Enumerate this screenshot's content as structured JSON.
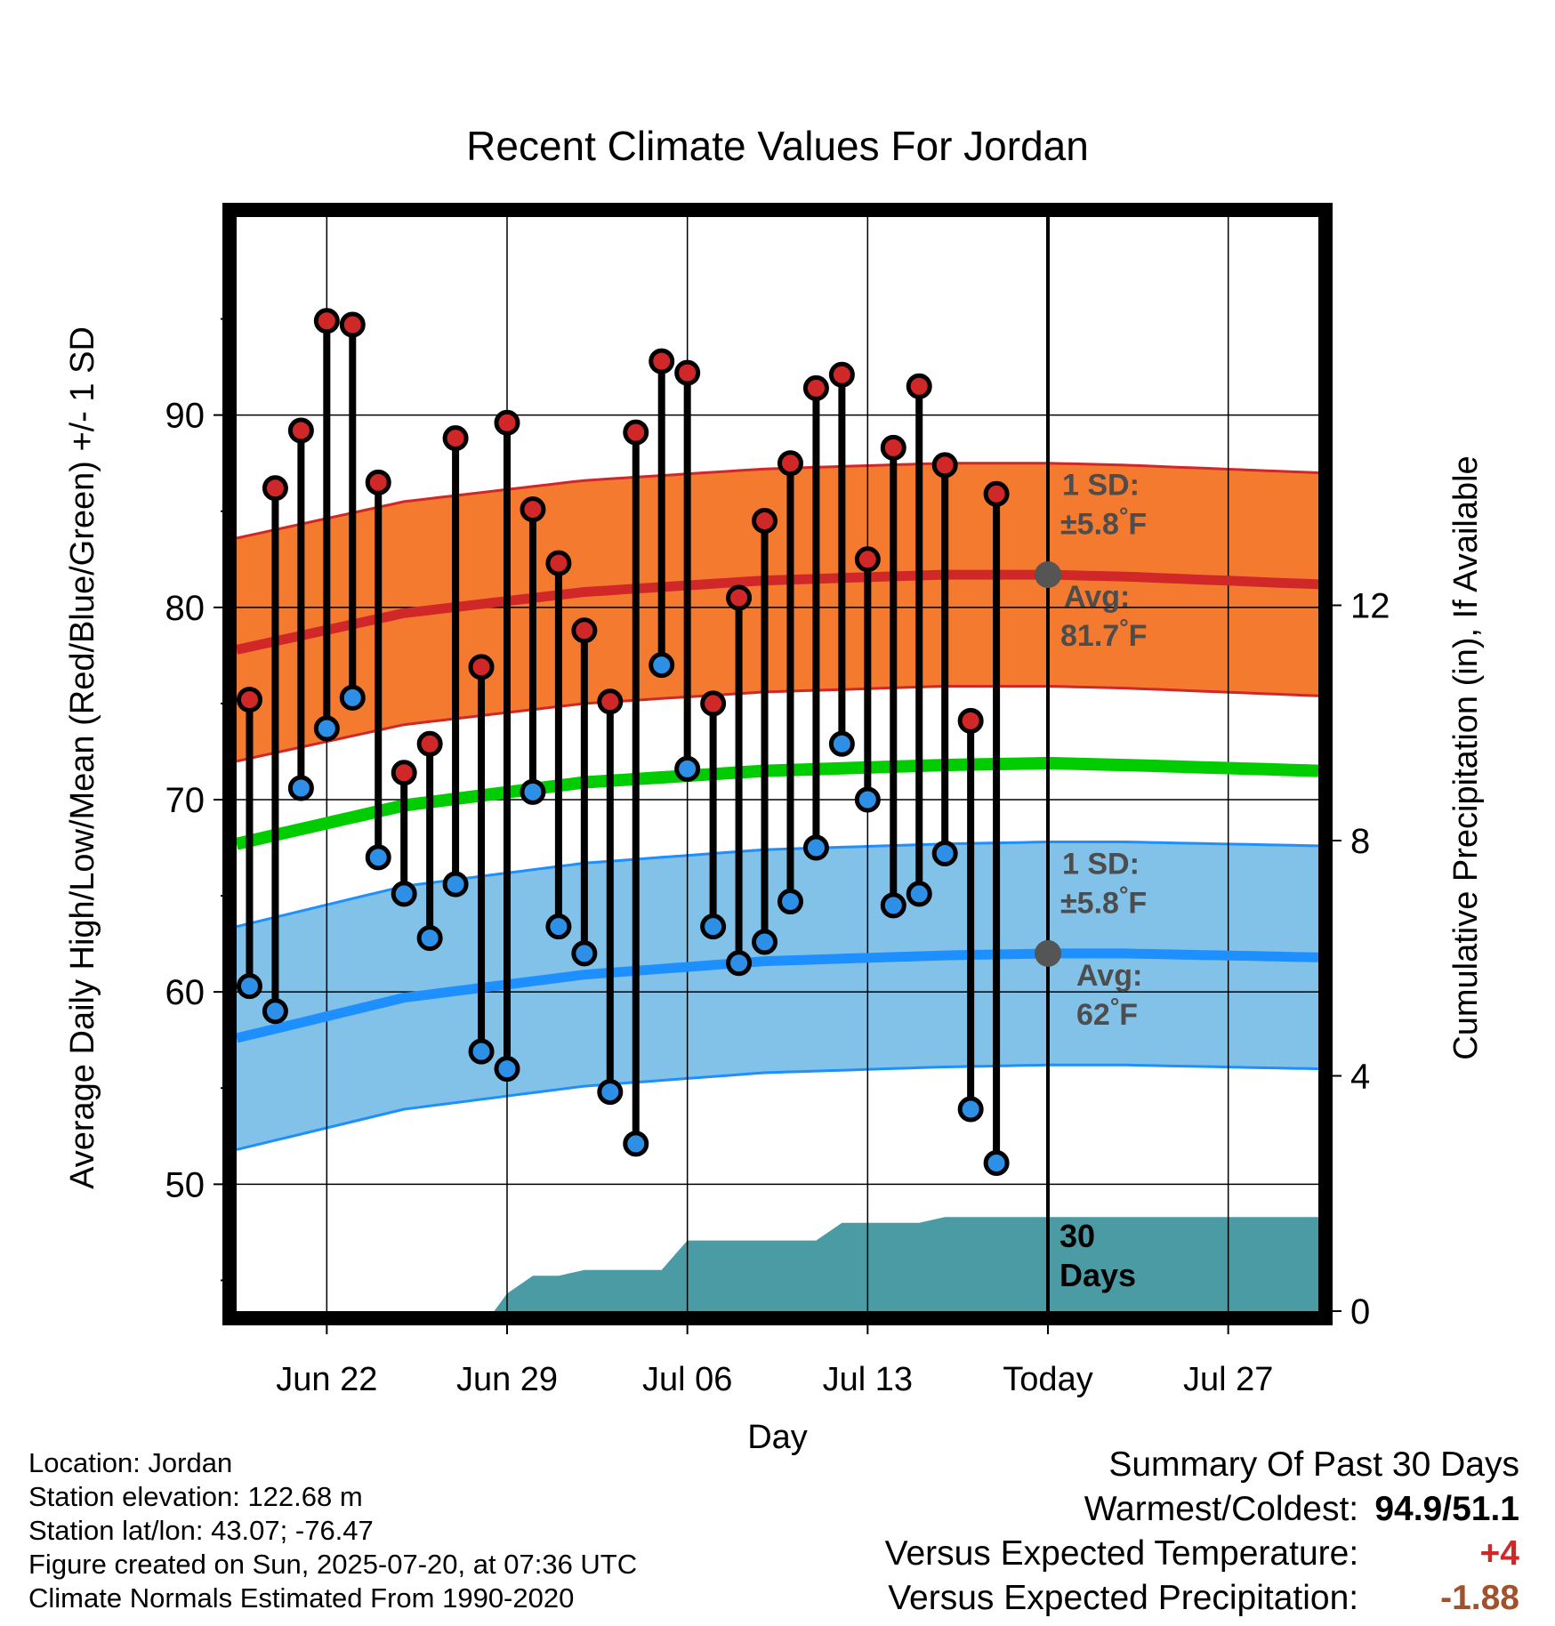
{
  "chart_data": {
    "type": "line",
    "title": "Recent Climate Values For Jordan",
    "xlabel": "Day",
    "ylabel": "Average Daily High/Low/Mean (Red/Blue/Green) +/- 1 SD",
    "ylabel_right": "Cumulative Precipitation (in), If Available",
    "x_ticks": [
      "Jun 22",
      "Jun 29",
      "Jul 06",
      "Jul 13",
      "Today",
      "Jul 27"
    ],
    "x_tick_days": [
      3,
      10,
      17,
      24,
      31,
      38
    ],
    "xlim_days": [
      -0.5,
      41.5
    ],
    "y_ticks": [
      50,
      60,
      70,
      80,
      90
    ],
    "ylim": [
      43.4,
      100.3
    ],
    "y2_ticks": [
      0,
      4,
      8,
      12
    ],
    "y2lim": [
      0,
      18.6
    ],
    "grid": true,
    "today_day": 31,
    "today_label": [
      "30",
      "Days"
    ],
    "observed_days": [
      0,
      1,
      2,
      3,
      4,
      5,
      6,
      7,
      8,
      9,
      10,
      11,
      12,
      13,
      14,
      15,
      16,
      17,
      18,
      19,
      20,
      21,
      22,
      23,
      24,
      25,
      26,
      27,
      28,
      29
    ],
    "highs": [
      75.2,
      86.2,
      89.2,
      94.9,
      94.7,
      86.5,
      71.4,
      72.9,
      88.8,
      76.9,
      89.6,
      85.1,
      82.3,
      78.8,
      75.1,
      89.1,
      92.8,
      92.2,
      75.0,
      80.5,
      84.5,
      87.5,
      91.4,
      92.1,
      82.5,
      88.3,
      91.5,
      87.4,
      74.1,
      85.9
    ],
    "lows": [
      60.3,
      59.0,
      70.6,
      73.7,
      75.3,
      67.0,
      65.1,
      62.8,
      65.6,
      56.9,
      56.0,
      70.4,
      63.4,
      62.0,
      54.8,
      52.1,
      77.0,
      71.6,
      63.4,
      61.5,
      62.6,
      64.7,
      67.5,
      72.9,
      70.0,
      64.5,
      65.1,
      67.2,
      53.9,
      51.1
    ],
    "normals_days": [
      -0.5,
      6,
      13,
      20,
      27,
      31,
      34,
      41.5
    ],
    "normal_high": [
      77.8,
      79.7,
      80.8,
      81.4,
      81.7,
      81.7,
      81.6,
      81.2
    ],
    "normal_low": [
      57.6,
      59.7,
      60.9,
      61.6,
      61.9,
      62.0,
      62.0,
      61.8
    ],
    "normal_mean": [
      67.7,
      69.7,
      70.9,
      71.5,
      71.8,
      71.9,
      71.8,
      71.5
    ],
    "sd": 5.8,
    "precip_days": [
      9.5,
      10,
      11,
      12,
      13,
      16,
      17,
      18,
      19,
      22,
      23,
      26,
      27,
      41.5
    ],
    "precip_cum": [
      0,
      0.3,
      0.6,
      0.6,
      0.7,
      0.7,
      1.2,
      1.2,
      1.2,
      1.2,
      1.5,
      1.5,
      1.6,
      1.6
    ],
    "colors": {
      "high_band": "#F47A30",
      "high_line": "#D02828",
      "low_band": "#82C1E8",
      "low_line": "#1E8FFF",
      "mean_line": "#00CC00",
      "precip": "#4A9BA3",
      "high_dot": "#D02828",
      "low_dot": "#2D8FE6",
      "annot_text": "#4D4D4D",
      "today_marker": "#555555"
    },
    "annotations": {
      "high_sd_label": [
        "1 SD:",
        "±5.8°F"
      ],
      "high_avg_label": [
        "Avg:",
        "81.7°F"
      ],
      "low_sd_label": [
        "1 SD:",
        "±5.8°F"
      ],
      "low_avg_label": [
        "Avg:",
        "62°F"
      ]
    }
  },
  "footer": {
    "location": "Location: Jordan",
    "elevation": "Station elevation: 122.68 m",
    "latlon": "Station lat/lon: 43.07; -76.47",
    "created": "Figure created on Sun, 2025-07-20, at 07:36 UTC",
    "normals": "Climate Normals Estimated From 1990-2020"
  },
  "summary": {
    "heading": "Summary Of Past 30 Days",
    "warm_cold_label": "Warmest/Coldest:",
    "warm_cold_value": "94.9/51.1",
    "temp_label": "Versus Expected Temperature:",
    "temp_value": "+4",
    "temp_color": "#D02828",
    "precip_label": "Versus Expected Precipitation:",
    "precip_value": "-1.88",
    "precip_color": "#A0522D"
  }
}
